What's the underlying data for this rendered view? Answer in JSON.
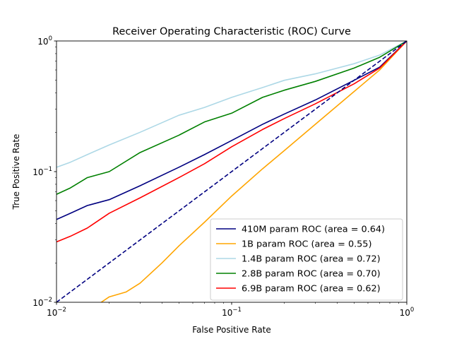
{
  "chart_data": {
    "type": "line",
    "title": "Receiver Operating Characteristic (ROC) Curve",
    "xlabel": "False Positive Rate",
    "ylabel": "True Positive Rate",
    "xscale": "log",
    "yscale": "log",
    "xlim": [
      0.01,
      1
    ],
    "ylim": [
      0.01,
      1
    ],
    "x_ticks": [
      {
        "value": 0.01,
        "label": "10^-2"
      },
      {
        "value": 0.1,
        "label": "10^-1"
      },
      {
        "value": 1,
        "label": "10^0"
      }
    ],
    "y_ticks": [
      {
        "value": 0.01,
        "label": "10^-2"
      },
      {
        "value": 0.1,
        "label": "10^-1"
      },
      {
        "value": 1,
        "label": "10^0"
      }
    ],
    "grid": false,
    "legend_position": "lower-right",
    "series": [
      {
        "name": "410M param ROC (area = 0.64)",
        "color": "#000080",
        "x": [
          0.01,
          0.012,
          0.015,
          0.02,
          0.03,
          0.05,
          0.07,
          0.1,
          0.15,
          0.2,
          0.3,
          0.5,
          0.7,
          1.0
        ],
        "y": [
          0.043,
          0.048,
          0.055,
          0.061,
          0.078,
          0.108,
          0.135,
          0.173,
          0.23,
          0.276,
          0.353,
          0.5,
          0.63,
          1.0
        ]
      },
      {
        "name": "1B param ROC (area = 0.55)",
        "color": "#FFA500",
        "x": [
          0.018,
          0.02,
          0.025,
          0.03,
          0.04,
          0.05,
          0.07,
          0.1,
          0.15,
          0.2,
          0.3,
          0.5,
          0.7,
          1.0
        ],
        "y": [
          0.01,
          0.011,
          0.012,
          0.014,
          0.02,
          0.027,
          0.041,
          0.065,
          0.105,
          0.145,
          0.23,
          0.41,
          0.6,
          1.0
        ]
      },
      {
        "name": "1.4B param ROC (area = 0.72)",
        "color": "#ADD8E6",
        "x": [
          0.01,
          0.012,
          0.015,
          0.02,
          0.03,
          0.05,
          0.07,
          0.1,
          0.15,
          0.2,
          0.3,
          0.5,
          0.7,
          1.0
        ],
        "y": [
          0.108,
          0.118,
          0.135,
          0.16,
          0.2,
          0.27,
          0.31,
          0.37,
          0.44,
          0.5,
          0.56,
          0.67,
          0.78,
          1.0
        ]
      },
      {
        "name": "2.8B param ROC (area = 0.70)",
        "color": "#008000",
        "x": [
          0.01,
          0.012,
          0.015,
          0.02,
          0.03,
          0.05,
          0.07,
          0.1,
          0.15,
          0.2,
          0.3,
          0.5,
          0.7,
          1.0
        ],
        "y": [
          0.067,
          0.075,
          0.09,
          0.1,
          0.14,
          0.19,
          0.24,
          0.28,
          0.37,
          0.42,
          0.49,
          0.62,
          0.75,
          1.0
        ]
      },
      {
        "name": "6.9B param ROC (area = 0.62)",
        "color": "#FF0000",
        "x": [
          0.01,
          0.012,
          0.015,
          0.02,
          0.03,
          0.05,
          0.07,
          0.1,
          0.15,
          0.2,
          0.3,
          0.5,
          0.7,
          1.0
        ],
        "y": [
          0.029,
          0.032,
          0.037,
          0.048,
          0.063,
          0.09,
          0.115,
          0.155,
          0.21,
          0.255,
          0.33,
          0.47,
          0.62,
          1.0
        ]
      },
      {
        "name": "",
        "color": "#000080",
        "dashed": true,
        "x": [
          0.01,
          1.0
        ],
        "y": [
          0.01,
          1.0
        ]
      }
    ]
  }
}
